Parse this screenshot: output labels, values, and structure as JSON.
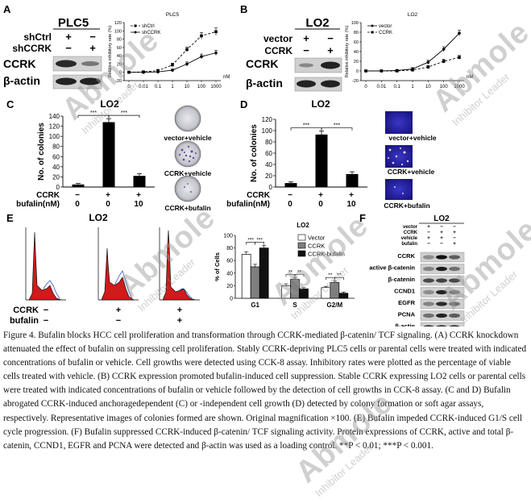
{
  "panels": {
    "A": {
      "letter": "A",
      "blot_title": "PLC5",
      "row_labels": [
        "shCtrl",
        "shCCRK"
      ],
      "row1_marks": [
        "+",
        "−"
      ],
      "row2_marks": [
        "−",
        "+"
      ],
      "bands": [
        "CCRK",
        "β-actin"
      ],
      "chart_title": "PLC5",
      "legend": [
        "shCtrl",
        "shCCRK"
      ],
      "ylabel": "Relative inhibitory rate (%)",
      "unit": "nM"
    },
    "B": {
      "letter": "B",
      "blot_title": "LO2",
      "row_labels": [
        "vector",
        "CCRK"
      ],
      "row1_marks": [
        "+",
        "−"
      ],
      "row2_marks": [
        "−",
        "+"
      ],
      "bands": [
        "CCRK",
        "β-actin"
      ],
      "chart_title": "LO2",
      "legend": [
        "vector",
        "CCRK"
      ],
      "ylabel": "Relative inhibitory rate (%)",
      "unit": "nM"
    },
    "C": {
      "letter": "C",
      "title": "LO2",
      "ylabel": "No. of colonies",
      "sig": [
        "***",
        "***"
      ],
      "row_labels": [
        "CCRK",
        "bufalin(nM)"
      ],
      "ccrk_marks": [
        "−",
        "+",
        "+"
      ],
      "bufalin_values": [
        "0",
        "0",
        "10"
      ],
      "image_labels": [
        "vector+vehicle",
        "CCRK+vehicle",
        "CCRK+bufalin"
      ]
    },
    "D": {
      "letter": "D",
      "title": "LO2",
      "ylabel": "No. of colonies",
      "sig": [
        "***",
        "***"
      ],
      "row_labels": [
        "CCRK",
        "bufalin(nM)"
      ],
      "ccrk_marks": [
        "−",
        "+",
        "+"
      ],
      "bufalin_values": [
        "0",
        "0",
        "10"
      ],
      "image_labels": [
        "vector+vehicle",
        "CCRK+vehicle",
        "CCRK+bufalin"
      ]
    },
    "E": {
      "letter": "E",
      "title": "LO2",
      "row_labels": [
        "CCRK",
        "bufalin"
      ],
      "ccrk_marks": [
        "−",
        "+",
        "+"
      ],
      "bufalin_marks": [
        "−",
        "−",
        "+"
      ],
      "chart_title": "LO2",
      "ylabel": "% of Cells",
      "legend": [
        "Vector",
        "CCRK",
        "CCRK-bufalin"
      ],
      "sig": [
        "***",
        "***",
        "**",
        "**",
        "**",
        "**"
      ]
    },
    "F": {
      "letter": "F",
      "title": "LO2",
      "row_labels": [
        "vector",
        "CCRK",
        "vehicle",
        "bufalin"
      ],
      "row_marks": [
        [
          "+",
          "−",
          "−"
        ],
        [
          "−",
          "+",
          "+"
        ],
        [
          "+",
          "+",
          "−"
        ],
        [
          "−",
          "−",
          "+"
        ]
      ],
      "bands": [
        "CCRK",
        "active β-catenin",
        "β-catenin",
        "CCND1",
        "EGFR",
        "PCNA",
        "β-actin"
      ]
    }
  },
  "chart_data": [
    {
      "type": "line",
      "panel": "A",
      "title": "PLC5",
      "xlabel": "nM",
      "ylabel": "Relative inhibitory rate (%)",
      "x": [
        "0",
        "0.01",
        "0.1",
        "1",
        "10",
        "100",
        "1000"
      ],
      "ylim": [
        -20,
        120
      ],
      "yticks": [
        -20,
        0,
        20,
        40,
        60,
        80,
        100,
        120
      ],
      "legend_position": "top-left",
      "series": [
        {
          "name": "shCtrl",
          "values": [
            0,
            1,
            4,
            18,
            55,
            88,
            98
          ],
          "errors": [
            2,
            2,
            3,
            4,
            6,
            8,
            9
          ],
          "style": "dashed",
          "marker": "square"
        },
        {
          "name": "shCCRK",
          "values": [
            0,
            0,
            1,
            5,
            20,
            38,
            47
          ],
          "errors": [
            2,
            2,
            2,
            3,
            5,
            6,
            6
          ],
          "style": "solid",
          "marker": "circle"
        }
      ]
    },
    {
      "type": "line",
      "panel": "B",
      "title": "LO2",
      "xlabel": "nM",
      "ylabel": "Relative inhibitory rate (%)",
      "x": [
        "0",
        "0.01",
        "0.1",
        "1",
        "10",
        "100",
        "1000"
      ],
      "ylim": [
        -20,
        100
      ],
      "yticks": [
        -20,
        0,
        20,
        40,
        60,
        80,
        100
      ],
      "legend_position": "top-left",
      "series": [
        {
          "name": "vector",
          "values": [
            0,
            0,
            1,
            4,
            18,
            45,
            78
          ],
          "errors": [
            2,
            2,
            2,
            3,
            4,
            5,
            6
          ],
          "style": "solid",
          "marker": "circle"
        },
        {
          "name": "CCRK",
          "values": [
            0,
            0,
            0,
            2,
            8,
            20,
            28
          ],
          "errors": [
            2,
            2,
            2,
            2,
            3,
            4,
            4
          ],
          "style": "dashed",
          "marker": "square"
        }
      ]
    },
    {
      "type": "bar",
      "panel": "C",
      "title": "LO2",
      "ylabel": "No. of colonies",
      "categories": [
        "vector+vehicle",
        "CCRK+vehicle",
        "CCRK+bufalin"
      ],
      "values": [
        5,
        128,
        22
      ],
      "errors": [
        2,
        7,
        4
      ],
      "ylim": [
        0,
        140
      ],
      "yticks": [
        0,
        20,
        40,
        60,
        80,
        100,
        120,
        140
      ]
    },
    {
      "type": "bar",
      "panel": "D",
      "title": "LO2",
      "ylabel": "No. of colonies",
      "categories": [
        "vector+vehicle",
        "CCRK+vehicle",
        "CCRK+bufalin"
      ],
      "values": [
        7,
        93,
        23
      ],
      "errors": [
        2,
        6,
        4
      ],
      "ylim": [
        0,
        120
      ],
      "yticks": [
        0,
        20,
        40,
        60,
        80,
        100,
        120
      ]
    },
    {
      "type": "bar",
      "panel": "E",
      "title": "LO2",
      "ylabel": "% of Cells",
      "categories": [
        "G1",
        "S",
        "G2/M"
      ],
      "ylim": [
        0,
        100
      ],
      "yticks": [
        0,
        20,
        40,
        60,
        80,
        100
      ],
      "legend_position": "top-right",
      "series": [
        {
          "name": "Vector",
          "values": [
            70,
            20,
            17
          ],
          "errors": [
            4,
            3,
            2
          ],
          "fill": "#ffffff"
        },
        {
          "name": "CCRK",
          "values": [
            50,
            30,
            25
          ],
          "errors": [
            4,
            3,
            3
          ],
          "fill": "#7f7f7f"
        },
        {
          "name": "CCRK-bufalin",
          "values": [
            80,
            15,
            8
          ],
          "errors": [
            4,
            2,
            2
          ],
          "fill": "#111111"
        }
      ]
    }
  ],
  "caption": "Figure 4. Bufalin blocks HCC cell proliferation and transformation through CCRK-mediated β-catenin/ TCF signaling. (A) CCRK knockdown attenuated the effect of bufalin on suppressing cell proliferation. Stably CCRK-depriving PLC5 cells or parental cells were treated with indicated concentrations of bufalin or vehicle. Cell growths were detected using CCK-8 assay. Inhibitory rates were plotted as the percentage of viable cells treated with vehicle. (B) CCRK expression promoted bufalin-induced cell suppression. Stable CCRK expressing LO2 cells or parental cells were treated with indicated concentrations of bufalin or vehicle followed by the detection of cell growths in CCK-8 assay. (C and D) Bufalin abrogated CCRK-induced anchoragedependent (C) or -independent cell growth (D) detected by colony formation or soft agar assays, respectively. Representative images of colonies formed are shown. Original magnification ×100. (E) Bufalin impeded CCRK-induced G1/S cell cycle progression. (F) Bufalin suppressed CCRK-induced β-catenin/ TCF signaling activity. Protein expressions of CCRK, active and total β-catenin, CCND1, EGFR and PCNA were detected and β-actin was used as a loading control. **P < 0.01; ***P < 0.001.",
  "watermark": {
    "brand": "Abmole",
    "tagline": "Inhibitor Leader"
  }
}
